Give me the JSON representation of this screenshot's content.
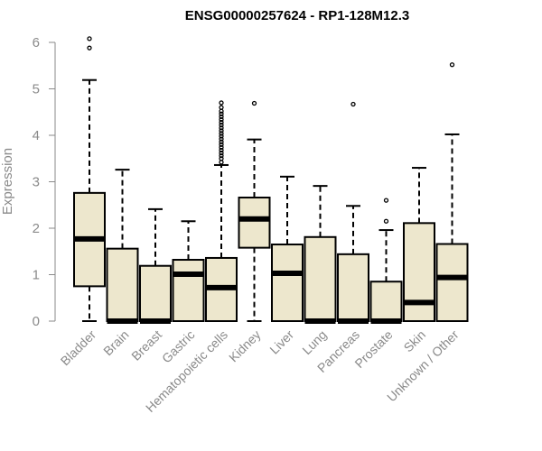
{
  "chart_data": {
    "type": "box",
    "title": "ENSG00000257624 - RP1-128M12.3",
    "xlabel": "",
    "ylabel": "Expression",
    "ylim": [
      0,
      6
    ],
    "yticks": [
      0,
      1,
      2,
      3,
      4,
      5,
      6
    ],
    "grid": false,
    "colors": {
      "box_fill": "#ede7cd",
      "box_stroke": "#000000",
      "axis": "#8a8a8a"
    },
    "categories": [
      "Bladder",
      "Brain",
      "Breast",
      "Gastric",
      "Hematopoietic cells",
      "Kidney",
      "Liver",
      "Lung",
      "Pancreas",
      "Prostate",
      "Skin",
      "Unknown / Other"
    ],
    "boxes": [
      {
        "category": "Bladder",
        "whisker_low": 0,
        "q1": 0.75,
        "median": 1.77,
        "q3": 2.76,
        "whisker_high": 5.19,
        "outliers": [
          5.88,
          6.08
        ]
      },
      {
        "category": "Brain",
        "whisker_low": 0,
        "q1": 0,
        "median": 0,
        "q3": 1.56,
        "whisker_high": 3.26,
        "outliers": []
      },
      {
        "category": "Breast",
        "whisker_low": 0,
        "q1": 0,
        "median": 0,
        "q3": 1.19,
        "whisker_high": 2.41,
        "outliers": []
      },
      {
        "category": "Gastric",
        "whisker_low": 0,
        "q1": 0,
        "median": 1.01,
        "q3": 1.32,
        "whisker_high": 2.15,
        "outliers": []
      },
      {
        "category": "Hematopoietic cells",
        "whisker_low": 0,
        "q1": 0,
        "median": 0.72,
        "q3": 1.36,
        "whisker_high": 3.36,
        "outliers": [
          3.42,
          3.5,
          3.56,
          3.62,
          3.68,
          3.74,
          3.8,
          3.86,
          3.92,
          3.98,
          4.04,
          4.1,
          4.16,
          4.22,
          4.28,
          4.34,
          4.4,
          4.46,
          4.52,
          4.6,
          4.7
        ]
      },
      {
        "category": "Kidney",
        "whisker_low": 0,
        "q1": 1.58,
        "median": 2.2,
        "q3": 2.66,
        "whisker_high": 3.91,
        "outliers": [
          4.69
        ]
      },
      {
        "category": "Liver",
        "whisker_low": 0,
        "q1": 0,
        "median": 1.03,
        "q3": 1.65,
        "whisker_high": 3.11,
        "outliers": []
      },
      {
        "category": "Lung",
        "whisker_low": 0,
        "q1": 0,
        "median": 0,
        "q3": 1.81,
        "whisker_high": 2.91,
        "outliers": []
      },
      {
        "category": "Pancreas",
        "whisker_low": 0,
        "q1": 0,
        "median": 0,
        "q3": 1.44,
        "whisker_high": 2.48,
        "outliers": [
          4.67
        ]
      },
      {
        "category": "Prostate",
        "whisker_low": 0,
        "q1": 0,
        "median": 0,
        "q3": 0.85,
        "whisker_high": 1.96,
        "outliers": [
          2.15,
          2.6
        ]
      },
      {
        "category": "Skin",
        "whisker_low": 0,
        "q1": 0,
        "median": 0.4,
        "q3": 2.11,
        "whisker_high": 3.3,
        "outliers": []
      },
      {
        "category": "Unknown / Other",
        "whisker_low": 0,
        "q1": 0,
        "median": 0.94,
        "q3": 1.66,
        "whisker_high": 4.02,
        "outliers": [
          5.52
        ]
      }
    ]
  }
}
